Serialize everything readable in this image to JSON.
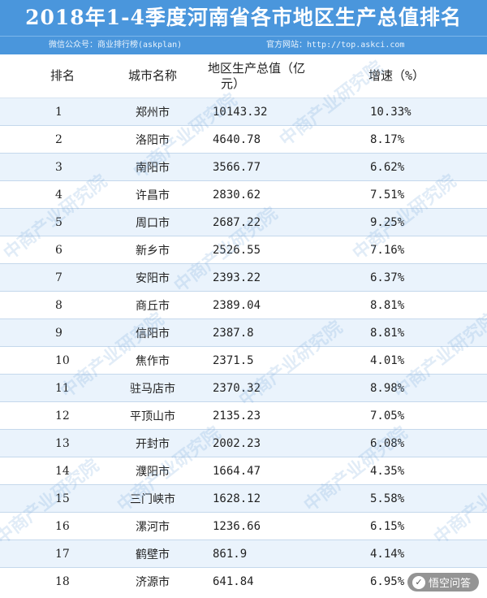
{
  "title": "2018年1-4季度河南省各市地区生产总值排名",
  "subtitle_left": "微信公众号：商业排行榜(askplan)",
  "subtitle_right": "官方网站：http://top.askci.com",
  "headers": {
    "rank": "排名",
    "city": "城市名称",
    "gdp_line1": "地区生产总值（亿",
    "gdp_line2": "元）",
    "growth": "增速（%）"
  },
  "rows": [
    {
      "rank": "1",
      "city": "郑州市",
      "gdp": "10143.32",
      "growth": "10.33%"
    },
    {
      "rank": "2",
      "city": "洛阳市",
      "gdp": "4640.78",
      "growth": "8.17%"
    },
    {
      "rank": "3",
      "city": "南阳市",
      "gdp": "3566.77",
      "growth": "6.62%"
    },
    {
      "rank": "4",
      "city": "许昌市",
      "gdp": "2830.62",
      "growth": "7.51%"
    },
    {
      "rank": "5",
      "city": "周口市",
      "gdp": "2687.22",
      "growth": "9.25%"
    },
    {
      "rank": "6",
      "city": "新乡市",
      "gdp": "2526.55",
      "growth": "7.16%"
    },
    {
      "rank": "7",
      "city": "安阳市",
      "gdp": "2393.22",
      "growth": "6.37%"
    },
    {
      "rank": "8",
      "city": "商丘市",
      "gdp": "2389.04",
      "growth": "8.81%"
    },
    {
      "rank": "9",
      "city": "信阳市",
      "gdp": "2387.8",
      "growth": "8.81%"
    },
    {
      "rank": "10",
      "city": "焦作市",
      "gdp": "2371.5",
      "growth": "4.01%"
    },
    {
      "rank": "11",
      "city": "驻马店市",
      "gdp": "2370.32",
      "growth": "8.98%"
    },
    {
      "rank": "12",
      "city": "平顶山市",
      "gdp": "2135.23",
      "growth": "7.05%"
    },
    {
      "rank": "13",
      "city": "开封市",
      "gdp": "2002.23",
      "growth": "6.08%"
    },
    {
      "rank": "14",
      "city": "濮阳市",
      "gdp": "1664.47",
      "growth": "4.35%"
    },
    {
      "rank": "15",
      "city": "三门峡市",
      "gdp": "1628.12",
      "growth": "5.58%"
    },
    {
      "rank": "16",
      "city": "漯河市",
      "gdp": "1236.66",
      "growth": "6.15%"
    },
    {
      "rank": "17",
      "city": "鹤壁市",
      "gdp": "861.9",
      "growth": "4.14%"
    },
    {
      "rank": "18",
      "city": "济源市",
      "gdp": "641.84",
      "growth": "6.95%"
    }
  ],
  "watermark_text": "中商产业研究院",
  "brand": {
    "icon": "logo-icon",
    "label": "悟空问答"
  }
}
